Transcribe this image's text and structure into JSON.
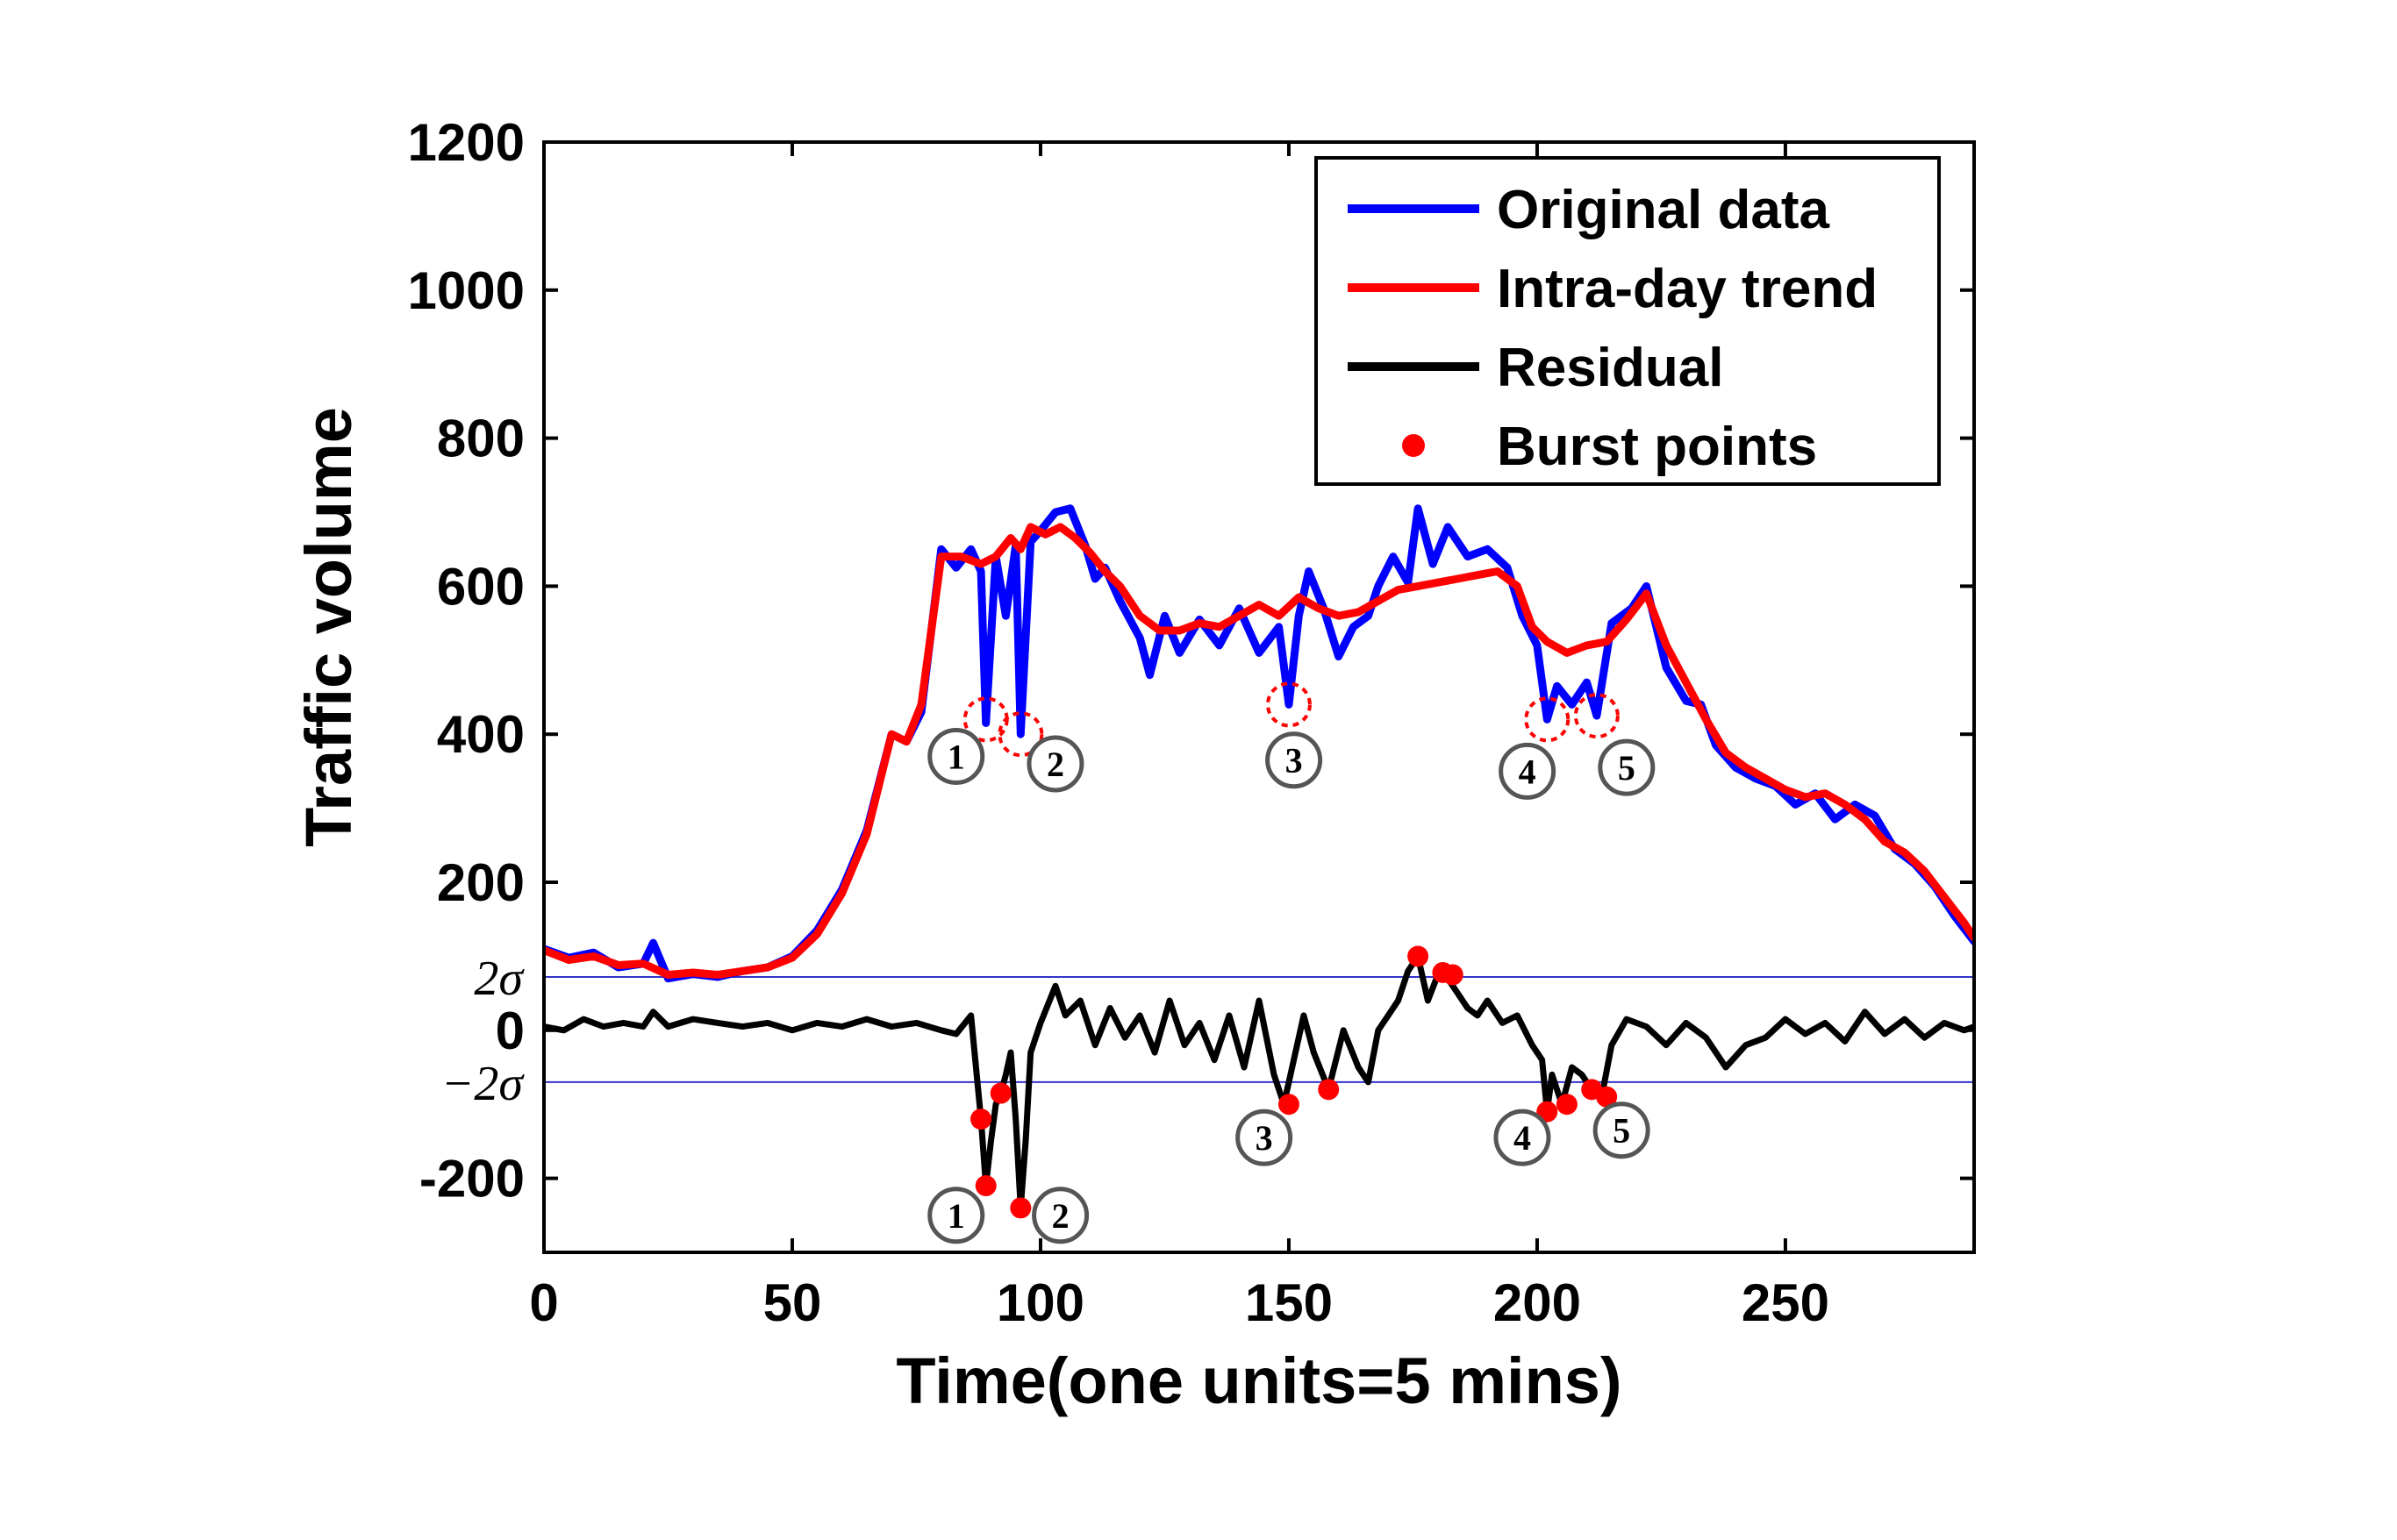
{
  "chart_data": {
    "type": "line",
    "title": "",
    "xlabel": "Time(one units=5 mins)",
    "ylabel": "Traffic volume",
    "xlim": [
      0,
      288
    ],
    "ylim": [
      -300,
      1200
    ],
    "xticks": [
      0,
      50,
      100,
      150,
      200,
      250
    ],
    "yticks": [
      {
        "value": 1200,
        "label": "1200"
      },
      {
        "value": 1000,
        "label": "1000"
      },
      {
        "value": 800,
        "label": "800"
      },
      {
        "value": 600,
        "label": "600"
      },
      {
        "value": 400,
        "label": "400"
      },
      {
        "value": 200,
        "label": "200"
      },
      {
        "value": 0,
        "label": "0"
      },
      {
        "value": -200,
        "label": "-200"
      }
    ],
    "sigma_lines": [
      {
        "label": "2σ",
        "value": 72
      },
      {
        "label": "−2σ",
        "value": -70
      }
    ],
    "legend": {
      "position": "top-right",
      "entries": [
        {
          "name": "Original data",
          "marker": "line",
          "color": "#0000ff"
        },
        {
          "name": "Intra-day trend",
          "marker": "line",
          "color": "#ff0000"
        },
        {
          "name": "Residual",
          "marker": "line",
          "color": "#000000"
        },
        {
          "name": "Burst points",
          "marker": "dot",
          "color": "#ff0000"
        }
      ]
    },
    "colors": {
      "original": "#0000ff",
      "trend": "#ff0000",
      "residual": "#000000",
      "burst": "#ff0000",
      "sigma": "#3333cc",
      "callout": "#555555"
    },
    "series": [
      {
        "name": "Original data",
        "color": "#0000ff",
        "points": [
          [
            0,
            110
          ],
          [
            5,
            98
          ],
          [
            10,
            105
          ],
          [
            15,
            85
          ],
          [
            20,
            90
          ],
          [
            22,
            118
          ],
          [
            25,
            70
          ],
          [
            30,
            76
          ],
          [
            35,
            72
          ],
          [
            40,
            80
          ],
          [
            45,
            85
          ],
          [
            50,
            100
          ],
          [
            55,
            135
          ],
          [
            60,
            190
          ],
          [
            65,
            270
          ],
          [
            70,
            400
          ],
          [
            73,
            390
          ],
          [
            76,
            430
          ],
          [
            80,
            650
          ],
          [
            83,
            625
          ],
          [
            86,
            650
          ],
          [
            88,
            620
          ],
          [
            89,
            415
          ],
          [
            91,
            640
          ],
          [
            93,
            560
          ],
          [
            95,
            655
          ],
          [
            96,
            400
          ],
          [
            98,
            660
          ],
          [
            100,
            675
          ],
          [
            103,
            700
          ],
          [
            106,
            705
          ],
          [
            109,
            655
          ],
          [
            111,
            610
          ],
          [
            113,
            625
          ],
          [
            116,
            580
          ],
          [
            120,
            530
          ],
          [
            122,
            480
          ],
          [
            125,
            560
          ],
          [
            128,
            510
          ],
          [
            132,
            555
          ],
          [
            136,
            520
          ],
          [
            140,
            570
          ],
          [
            144,
            510
          ],
          [
            148,
            545
          ],
          [
            150,
            440
          ],
          [
            152,
            560
          ],
          [
            154,
            620
          ],
          [
            157,
            570
          ],
          [
            160,
            505
          ],
          [
            163,
            545
          ],
          [
            166,
            560
          ],
          [
            168,
            600
          ],
          [
            171,
            640
          ],
          [
            174,
            605
          ],
          [
            176,
            705
          ],
          [
            179,
            630
          ],
          [
            182,
            680
          ],
          [
            186,
            640
          ],
          [
            190,
            650
          ],
          [
            194,
            625
          ],
          [
            197,
            560
          ],
          [
            200,
            520
          ],
          [
            202,
            420
          ],
          [
            204,
            465
          ],
          [
            207,
            440
          ],
          [
            210,
            470
          ],
          [
            212,
            425
          ],
          [
            215,
            550
          ],
          [
            219,
            570
          ],
          [
            222,
            600
          ],
          [
            226,
            490
          ],
          [
            230,
            445
          ],
          [
            233,
            440
          ],
          [
            236,
            385
          ],
          [
            240,
            355
          ],
          [
            244,
            340
          ],
          [
            248,
            330
          ],
          [
            252,
            305
          ],
          [
            256,
            320
          ],
          [
            260,
            285
          ],
          [
            264,
            305
          ],
          [
            268,
            290
          ],
          [
            272,
            245
          ],
          [
            276,
            225
          ],
          [
            280,
            195
          ],
          [
            284,
            155
          ],
          [
            288,
            120
          ]
        ]
      },
      {
        "name": "Intra-day trend",
        "color": "#ff0000",
        "points": [
          [
            0,
            108
          ],
          [
            5,
            95
          ],
          [
            10,
            100
          ],
          [
            15,
            88
          ],
          [
            20,
            90
          ],
          [
            25,
            75
          ],
          [
            30,
            78
          ],
          [
            35,
            75
          ],
          [
            40,
            80
          ],
          [
            45,
            85
          ],
          [
            50,
            98
          ],
          [
            55,
            130
          ],
          [
            60,
            185
          ],
          [
            65,
            265
          ],
          [
            70,
            400
          ],
          [
            73,
            390
          ],
          [
            76,
            440
          ],
          [
            80,
            640
          ],
          [
            84,
            640
          ],
          [
            88,
            630
          ],
          [
            91,
            640
          ],
          [
            94,
            665
          ],
          [
            96,
            650
          ],
          [
            98,
            680
          ],
          [
            101,
            670
          ],
          [
            104,
            680
          ],
          [
            107,
            665
          ],
          [
            110,
            645
          ],
          [
            113,
            620
          ],
          [
            116,
            600
          ],
          [
            120,
            560
          ],
          [
            124,
            540
          ],
          [
            128,
            540
          ],
          [
            132,
            550
          ],
          [
            136,
            545
          ],
          [
            140,
            560
          ],
          [
            144,
            575
          ],
          [
            148,
            560
          ],
          [
            152,
            585
          ],
          [
            156,
            570
          ],
          [
            160,
            560
          ],
          [
            164,
            565
          ],
          [
            168,
            580
          ],
          [
            172,
            595
          ],
          [
            176,
            600
          ],
          [
            180,
            605
          ],
          [
            184,
            610
          ],
          [
            188,
            615
          ],
          [
            192,
            620
          ],
          [
            196,
            600
          ],
          [
            199,
            545
          ],
          [
            202,
            525
          ],
          [
            206,
            510
          ],
          [
            210,
            520
          ],
          [
            214,
            525
          ],
          [
            218,
            555
          ],
          [
            222,
            590
          ],
          [
            226,
            520
          ],
          [
            230,
            470
          ],
          [
            234,
            420
          ],
          [
            238,
            375
          ],
          [
            242,
            355
          ],
          [
            246,
            340
          ],
          [
            250,
            325
          ],
          [
            254,
            315
          ],
          [
            258,
            320
          ],
          [
            262,
            305
          ],
          [
            266,
            285
          ],
          [
            270,
            255
          ],
          [
            274,
            240
          ],
          [
            278,
            215
          ],
          [
            282,
            180
          ],
          [
            286,
            145
          ],
          [
            288,
            125
          ]
        ]
      },
      {
        "name": "Residual",
        "color": "#000000",
        "points": [
          [
            0,
            5
          ],
          [
            4,
            0
          ],
          [
            8,
            15
          ],
          [
            12,
            5
          ],
          [
            16,
            10
          ],
          [
            20,
            5
          ],
          [
            22,
            25
          ],
          [
            25,
            5
          ],
          [
            30,
            15
          ],
          [
            35,
            10
          ],
          [
            40,
            5
          ],
          [
            45,
            10
          ],
          [
            50,
            0
          ],
          [
            55,
            10
          ],
          [
            60,
            5
          ],
          [
            65,
            15
          ],
          [
            70,
            5
          ],
          [
            75,
            10
          ],
          [
            80,
            0
          ],
          [
            83,
            -5
          ],
          [
            86,
            20
          ],
          [
            87,
            -50
          ],
          [
            88,
            -120
          ],
          [
            89,
            -210
          ],
          [
            90,
            -150
          ],
          [
            91,
            -100
          ],
          [
            92,
            -85
          ],
          [
            93,
            -60
          ],
          [
            94,
            -30
          ],
          [
            95,
            -120
          ],
          [
            96,
            -240
          ],
          [
            97,
            -150
          ],
          [
            98,
            -30
          ],
          [
            100,
            10
          ],
          [
            103,
            60
          ],
          [
            105,
            20
          ],
          [
            108,
            40
          ],
          [
            111,
            -20
          ],
          [
            114,
            30
          ],
          [
            117,
            -10
          ],
          [
            120,
            20
          ],
          [
            123,
            -30
          ],
          [
            126,
            40
          ],
          [
            129,
            -20
          ],
          [
            132,
            10
          ],
          [
            135,
            -40
          ],
          [
            138,
            20
          ],
          [
            141,
            -50
          ],
          [
            144,
            40
          ],
          [
            147,
            -60
          ],
          [
            149,
            -100
          ],
          [
            151,
            -40
          ],
          [
            153,
            20
          ],
          [
            155,
            -30
          ],
          [
            158,
            -80
          ],
          [
            161,
            0
          ],
          [
            164,
            -50
          ],
          [
            166,
            -70
          ],
          [
            168,
            0
          ],
          [
            170,
            20
          ],
          [
            172,
            40
          ],
          [
            174,
            80
          ],
          [
            176,
            100
          ],
          [
            178,
            40
          ],
          [
            180,
            75
          ],
          [
            182,
            70
          ],
          [
            184,
            50
          ],
          [
            186,
            30
          ],
          [
            188,
            20
          ],
          [
            190,
            40
          ],
          [
            193,
            10
          ],
          [
            196,
            20
          ],
          [
            199,
            -20
          ],
          [
            201,
            -40
          ],
          [
            202,
            -110
          ],
          [
            203,
            -60
          ],
          [
            205,
            -100
          ],
          [
            207,
            -50
          ],
          [
            209,
            -60
          ],
          [
            211,
            -80
          ],
          [
            213,
            -90
          ],
          [
            215,
            -20
          ],
          [
            218,
            15
          ],
          [
            222,
            5
          ],
          [
            226,
            -20
          ],
          [
            230,
            10
          ],
          [
            234,
            -10
          ],
          [
            238,
            -50
          ],
          [
            242,
            -20
          ],
          [
            246,
            -10
          ],
          [
            250,
            15
          ],
          [
            254,
            -5
          ],
          [
            258,
            10
          ],
          [
            262,
            -15
          ],
          [
            266,
            25
          ],
          [
            270,
            -5
          ],
          [
            274,
            15
          ],
          [
            278,
            -10
          ],
          [
            282,
            10
          ],
          [
            286,
            0
          ],
          [
            288,
            5
          ]
        ]
      }
    ],
    "burst_points": [
      {
        "x": 88,
        "y": -120
      },
      {
        "x": 89,
        "y": -210
      },
      {
        "x": 92,
        "y": -85
      },
      {
        "x": 96,
        "y": -240
      },
      {
        "x": 150,
        "y": -100
      },
      {
        "x": 158,
        "y": -80
      },
      {
        "x": 176,
        "y": 100
      },
      {
        "x": 181,
        "y": 78
      },
      {
        "x": 183,
        "y": 75
      },
      {
        "x": 202,
        "y": -110
      },
      {
        "x": 206,
        "y": -100
      },
      {
        "x": 211,
        "y": -80
      },
      {
        "x": 214,
        "y": -90
      }
    ],
    "dashed_circles": [
      {
        "x": 89,
        "y": 420
      },
      {
        "x": 96,
        "y": 400
      },
      {
        "x": 150,
        "y": 440
      },
      {
        "x": 202,
        "y": 420
      },
      {
        "x": 212,
        "y": 425
      }
    ],
    "callouts": [
      {
        "label": "1",
        "x": 83,
        "y": 370
      },
      {
        "label": "2",
        "x": 103,
        "y": 360
      },
      {
        "label": "3",
        "x": 151,
        "y": 365
      },
      {
        "label": "4",
        "x": 198,
        "y": 350
      },
      {
        "label": "5",
        "x": 218,
        "y": 355
      },
      {
        "label": "1",
        "x": 83,
        "y": -250
      },
      {
        "label": "2",
        "x": 104,
        "y": -250
      },
      {
        "label": "3",
        "x": 145,
        "y": -145
      },
      {
        "label": "4",
        "x": 197,
        "y": -145
      },
      {
        "label": "5",
        "x": 217,
        "y": -135
      }
    ]
  }
}
